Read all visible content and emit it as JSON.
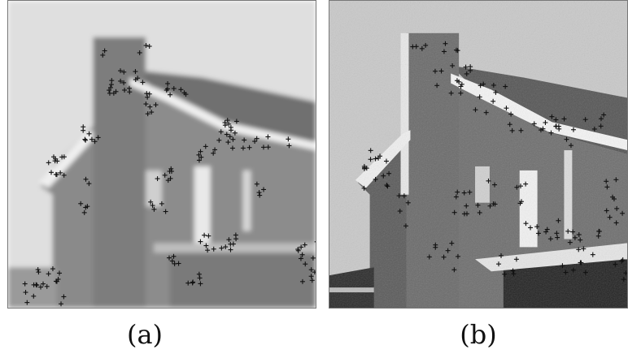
{
  "panels": [
    {
      "id": "a",
      "caption": "(a)",
      "colors": {
        "sky": "#dfdfdf",
        "wall": "#8c8c8c",
        "wall_dark": "#7a7a7a",
        "roof": "#6f6f6f",
        "trim": "#efefef",
        "ground": "#9a9a9a"
      },
      "image_style": "blurred grayscale photograph of a house with chimney",
      "marker_symbol": "+"
    },
    {
      "id": "b",
      "caption": "(b)",
      "colors": {
        "sky": "#c9c9c9",
        "wall": "#6a6a6a",
        "wall_dark": "#4f4f4f",
        "roof": "#555555",
        "trim": "#f5f5f5",
        "ground": "#222222"
      },
      "image_style": "quantized noisy grayscale photograph of the same house",
      "marker_symbol": "+"
    }
  ]
}
